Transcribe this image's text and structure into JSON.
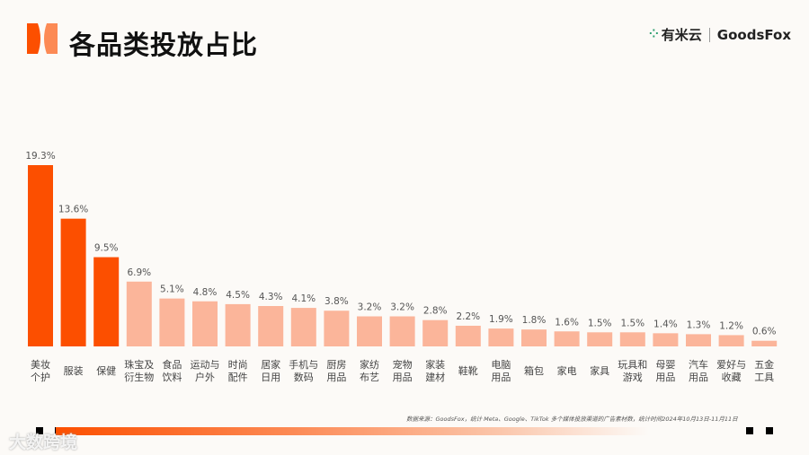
{
  "header": {
    "title": "各品类投放占比",
    "brand_cn": "有米云",
    "brand_en": "GoodsFox",
    "brand_icon": "dotted-circle-icon"
  },
  "footer": {
    "source": "数据来源：GoodsFox，统计 Meta、Google、TikTok 多个媒体投放渠道的广告素材数，统计时间2024年10月13日-11月11日",
    "watermark": "大数跨境"
  },
  "colors": {
    "highlight": "#fc4f00",
    "normal": "#fbb59a",
    "accent": "#fc4f00"
  },
  "chart_data": {
    "type": "bar",
    "title": "各品类投放占比",
    "categories": [
      "美妆\n个护",
      "服装",
      "保健",
      "珠宝及\n衍生物",
      "食品\n饮料",
      "运动与\n户外",
      "时尚\n配件",
      "居家\n日用",
      "手机与\n数码",
      "厨房\n用品",
      "家纺\n布艺",
      "宠物\n用品",
      "家装\n建材",
      "鞋靴",
      "电脑\n用品",
      "箱包",
      "家电",
      "家具",
      "玩具和\n游戏",
      "母婴\n用品",
      "汽车\n用品",
      "爱好与\n收藏",
      "五金\n工具"
    ],
    "values": [
      19.3,
      13.6,
      9.5,
      6.9,
      5.1,
      4.8,
      4.5,
      4.3,
      4.1,
      3.8,
      3.2,
      3.2,
      2.8,
      2.2,
      1.9,
      1.8,
      1.6,
      1.5,
      1.5,
      1.4,
      1.3,
      1.2,
      0.6
    ],
    "value_labels": [
      "19.3%",
      "13.6%",
      "9.5%",
      "6.9%",
      "5.1%",
      "4.8%",
      "4.5%",
      "4.3%",
      "4.1%",
      "3.8%",
      "3.2%",
      "3.2%",
      "2.8%",
      "2.2%",
      "1.9%",
      "1.8%",
      "1.6%",
      "1.5%",
      "1.5%",
      "1.4%",
      "1.3%",
      "1.2%",
      "0.6%"
    ],
    "highlighted_count": 3,
    "unit": "%",
    "grid": false,
    "legend": "none"
  }
}
